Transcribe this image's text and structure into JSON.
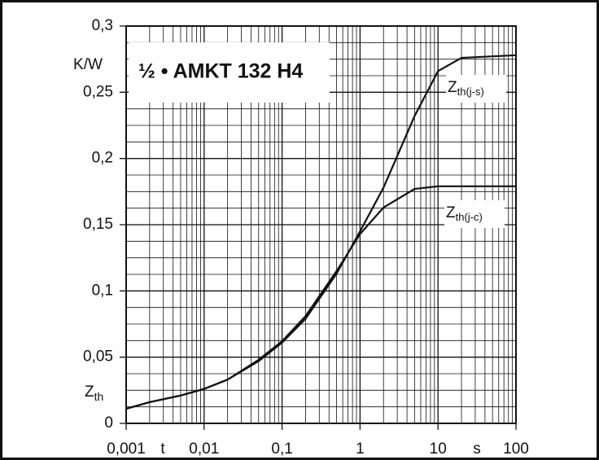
{
  "chart_data": {
    "type": "line",
    "title": "½ • AMKT 132 H4",
    "y_label_main": "Z",
    "y_label_sub": "th",
    "y_unit": "K/W",
    "x_label": "t",
    "x_unit": "s",
    "xscale": "log",
    "grid": true,
    "xlim": [
      0.001,
      100
    ],
    "xticks": [
      {
        "value": 0.001,
        "label": "0,001"
      },
      {
        "value": 0.01,
        "label": "0,01"
      },
      {
        "value": 0.1,
        "label": "0,1"
      },
      1,
      10,
      100
    ],
    "ylim": [
      0,
      0.3
    ],
    "yticks": [
      0,
      {
        "value": 0.05,
        "label": "0,05"
      },
      {
        "value": 0.1,
        "label": "0,1"
      },
      {
        "value": 0.15,
        "label": "0,15"
      },
      {
        "value": 0.2,
        "label": "0,2"
      },
      {
        "value": 0.25,
        "label": "0,25"
      },
      {
        "value": 0.3,
        "label": "0,3"
      }
    ],
    "x": [
      0.001,
      0.002,
      0.005,
      0.01,
      0.02,
      0.05,
      0.1,
      0.2,
      0.5,
      1,
      2,
      5,
      10,
      20,
      100
    ],
    "series": [
      {
        "name": "Zth(j-s)",
        "color": "#111111",
        "values": [
          0.011,
          0.016,
          0.021,
          0.026,
          0.033,
          0.047,
          0.061,
          0.079,
          0.113,
          0.145,
          0.178,
          0.232,
          0.266,
          0.276,
          0.278
        ]
      },
      {
        "name": "Zth(j-c)",
        "color": "#111111",
        "values": [
          0.011,
          0.016,
          0.021,
          0.026,
          0.033,
          0.048,
          0.062,
          0.081,
          0.115,
          0.143,
          0.163,
          0.177,
          0.179,
          0.179,
          0.179
        ]
      }
    ]
  }
}
